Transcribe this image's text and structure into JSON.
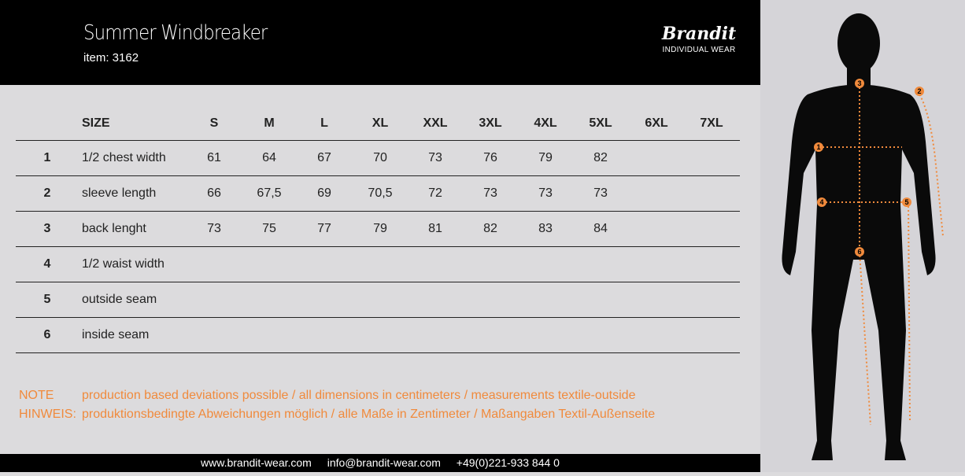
{
  "header": {
    "title": "Summer Windbreaker",
    "item": "item: 3162",
    "logo": {
      "brand": "Brandit",
      "tagline": "INDIVIDUAL WEAR"
    }
  },
  "table": {
    "header": {
      "label": "SIZE",
      "sizes": [
        "S",
        "M",
        "L",
        "XL",
        "XXL",
        "3XL",
        "4XL",
        "5XL",
        "6XL",
        "7XL"
      ]
    },
    "rows": [
      {
        "num": "1",
        "name": "1/2 chest width",
        "values": [
          "61",
          "64",
          "67",
          "70",
          "73",
          "76",
          "79",
          "82",
          "",
          ""
        ]
      },
      {
        "num": "2",
        "name": "sleeve length",
        "values": [
          "66",
          "67,5",
          "69",
          "70,5",
          "72",
          "73",
          "73",
          "73",
          "",
          ""
        ]
      },
      {
        "num": "3",
        "name": "back lenght",
        "values": [
          "73",
          "75",
          "77",
          "79",
          "81",
          "82",
          "83",
          "84",
          "",
          ""
        ]
      },
      {
        "num": "4",
        "name": "1/2 waist width",
        "values": [
          "",
          "",
          "",
          "",
          "",
          "",
          "",
          "",
          "",
          ""
        ]
      },
      {
        "num": "5",
        "name": "outside seam",
        "values": [
          "",
          "",
          "",
          "",
          "",
          "",
          "",
          "",
          "",
          ""
        ]
      },
      {
        "num": "6",
        "name": "inside seam",
        "values": [
          "",
          "",
          "",
          "",
          "",
          "",
          "",
          "",
          "",
          ""
        ]
      }
    ]
  },
  "notes": [
    {
      "label": "NOTE",
      "text": "production based deviations possible / all dimensions in centimeters / measurements textile-outside"
    },
    {
      "label": "HINWEIS:",
      "text": "produktionsbedingte Abweichungen möglich / alle Maße in Zentimeter / Maßangaben Textil-Außenseite"
    }
  ],
  "footer": {
    "web": "www.brandit-wear.com",
    "email": "info@brandit-wear.com",
    "phone": "+49(0)221-933 844 0"
  },
  "figure": {
    "markers": [
      "1",
      "2",
      "3",
      "4",
      "5",
      "6"
    ],
    "accent": "#f08a3c"
  }
}
